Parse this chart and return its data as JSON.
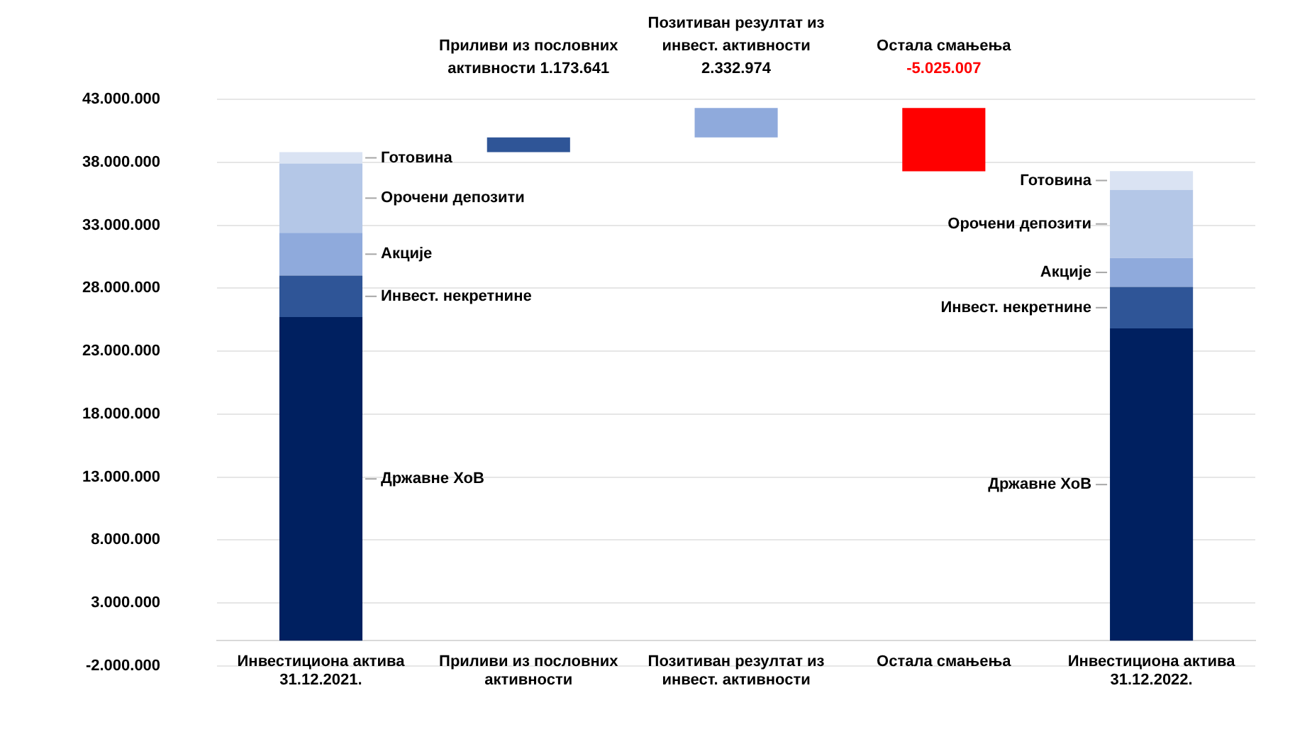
{
  "chart_data": {
    "type": "bar",
    "stacked": true,
    "categories": [
      "Инвестициона актива 31.12.2021.",
      "Приливи из пословних активности",
      "Позитиван резултат из инвест. активности",
      "Остала смањења",
      "Инвестициона актива 31.12.2022."
    ],
    "series": [
      {
        "name": "Државне ХоВ",
        "color": "#002060",
        "values": [
          25700000,
          null,
          null,
          null,
          24800000
        ]
      },
      {
        "name": "Инвест. некретнине",
        "color": "#2f5597",
        "values": [
          3300000,
          null,
          null,
          null,
          3300000
        ]
      },
      {
        "name": "Акције",
        "color": "#8faadc",
        "values": [
          3400000,
          null,
          null,
          null,
          2300000
        ]
      },
      {
        "name": "Орочени депозити",
        "color": "#b4c7e7",
        "values": [
          5500000,
          null,
          null,
          null,
          5400000
        ]
      },
      {
        "name": "Готовина",
        "color": "#dae3f3",
        "values": [
          900000,
          null,
          null,
          null,
          1500000
        ]
      },
      {
        "colors": [
          "#2f5597",
          "#2f5597",
          "#8faadc",
          "#ff0000",
          "#2f5597"
        ],
        "values": [
          null,
          1173641,
          2332974,
          -5025007,
          null
        ],
        "base": [
          null,
          38800000,
          39973641,
          42306615,
          null
        ],
        "value_labels": [
          null,
          "1.173.641",
          "2.332.974",
          "-5.025.007",
          null
        ]
      }
    ],
    "ylim": [
      -2000000,
      43000000
    ],
    "yticks": [
      {
        "value": -2000000,
        "label": "-2.000.000"
      },
      {
        "value": 3000000,
        "label": "3.000.000"
      },
      {
        "value": 8000000,
        "label": "8.000.000"
      },
      {
        "value": 13000000,
        "label": "13.000.000"
      },
      {
        "value": 18000000,
        "label": "18.000.000"
      },
      {
        "value": 23000000,
        "label": "23.000.000"
      },
      {
        "value": 28000000,
        "label": "28.000.000"
      },
      {
        "value": 33000000,
        "label": "33.000.000"
      },
      {
        "value": 38000000,
        "label": "38.000.000"
      },
      {
        "value": 43000000,
        "label": "43.000.000"
      }
    ],
    "grid": "y",
    "legend": false
  }
}
